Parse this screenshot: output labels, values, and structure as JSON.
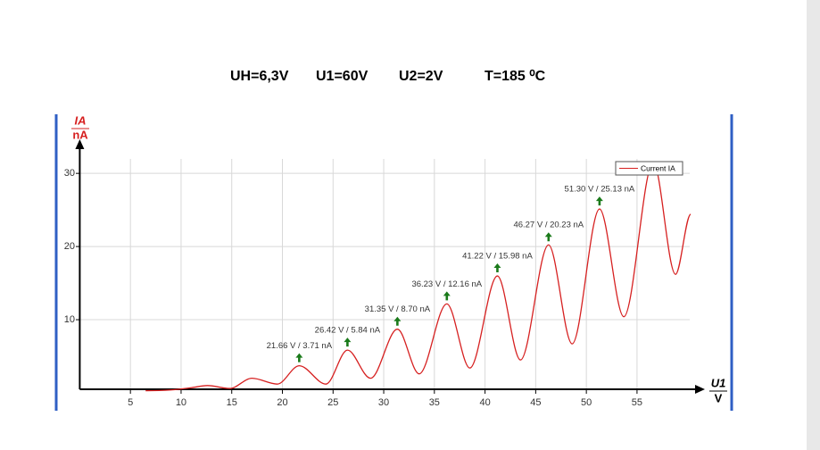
{
  "header": {
    "items": [
      "UH=6,3V",
      "U1=60V",
      "U2=2V",
      "T=185 ⁰C"
    ]
  },
  "chart_data": {
    "type": "line",
    "y_label_top": "IA",
    "y_label_bottom": "nA",
    "x_label_top": "U1",
    "x_label_bottom": "V",
    "xlim": [
      0,
      61.7
    ],
    "ylim": [
      0,
      36
    ],
    "xticks": [
      5,
      10,
      15,
      20,
      25,
      30,
      35,
      40,
      45,
      50,
      55
    ],
    "yticks": [
      10,
      20,
      30
    ],
    "grid": true,
    "legend": "upper right",
    "series": [
      {
        "name": "Current IA",
        "color": "#d62020",
        "x": [
          6.5,
          9,
          11,
          12.6,
          14.8,
          17.0,
          19.5,
          21.66,
          24.3,
          26.42,
          28.7,
          31.35,
          33.5,
          36.23,
          38.5,
          41.22,
          43.5,
          46.27,
          48.6,
          51.3,
          53.7,
          56.6,
          58.8,
          60.3
        ],
        "values": [
          0.3,
          0.4,
          0.7,
          1.0,
          0.6,
          2.0,
          1.2,
          3.71,
          1.2,
          5.84,
          2.0,
          8.7,
          2.6,
          12.16,
          3.4,
          15.98,
          4.5,
          20.23,
          6.7,
          25.13,
          10.4,
          31.5,
          16.2,
          24.4
        ]
      }
    ],
    "annotation_color": "#1a7a1a",
    "annotations": [
      {
        "text": "21.66 V / 3.71 nA",
        "x": 21.66,
        "y": 3.71
      },
      {
        "text": "26.42 V / 5.84 nA",
        "x": 26.42,
        "y": 5.84
      },
      {
        "text": "31.35 V / 8.70 nA",
        "x": 31.35,
        "y": 8.7
      },
      {
        "text": "36.23 V / 12.16 nA",
        "x": 36.23,
        "y": 12.16
      },
      {
        "text": "41.22 V / 15.98 nA",
        "x": 41.22,
        "y": 15.98
      },
      {
        "text": "46.27 V / 20.23 nA",
        "x": 46.27,
        "y": 20.23
      },
      {
        "text": "51.30 V / 25.13 nA",
        "x": 51.3,
        "y": 25.13
      }
    ]
  }
}
